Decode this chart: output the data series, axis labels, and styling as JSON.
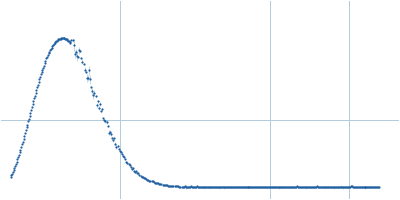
{
  "title": "",
  "background_color": "#ffffff",
  "line_color": "#3070b3",
  "error_color": "#7bafd4",
  "marker_color": "#2060a0",
  "grid_color": "#b0cce0",
  "figsize": [
    4.0,
    2.0
  ],
  "dpi": 100
}
